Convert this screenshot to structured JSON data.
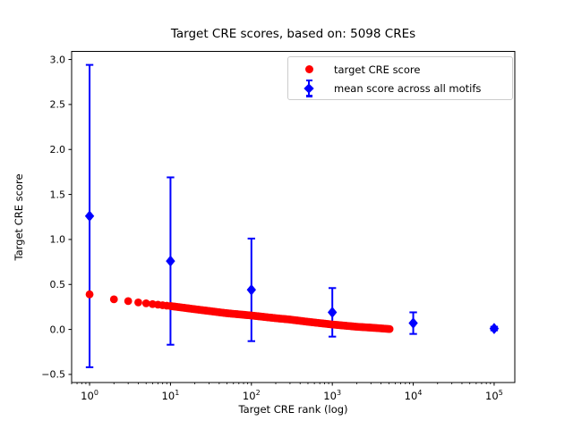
{
  "figure": {
    "title": "Target CRE scores, based on: 5098 CREs",
    "background": "#ffffff"
  },
  "axes": {
    "xlabel": "Target CRE rank (log)",
    "ylabel": "Target CRE score",
    "x_scale": "log10",
    "x_tick_base": "10",
    "x_tick_exponents": [
      0,
      1,
      2,
      3,
      4,
      5
    ],
    "y_tick_labels": [
      "3.0",
      "2.5",
      "2.0",
      "1.5",
      "1.0",
      "0.5",
      "0.0",
      "−0.5"
    ],
    "y_tick_values": [
      3.0,
      2.5,
      2.0,
      1.5,
      1.0,
      0.5,
      0.0,
      -0.5
    ],
    "xlim": [
      0.6,
      180000
    ],
    "ylim": [
      -0.59,
      3.09
    ],
    "grid": false
  },
  "legend": {
    "position": "upper right",
    "entries": [
      {
        "label": "target CRE score",
        "marker": "circle",
        "color": "#ff0000"
      },
      {
        "label": "mean score across all motifs",
        "marker": "diamond-with-errorbar",
        "color": "#0000ff"
      }
    ]
  },
  "chart_data": {
    "type": "scatter",
    "title": "Target CRE scores, based on: 5098 CREs",
    "xlabel": "Target CRE rank (log)",
    "ylabel": "Target CRE score",
    "x_scale": "log",
    "xlim": [
      0.6,
      180000
    ],
    "ylim": [
      -0.59,
      3.09
    ],
    "grid": false,
    "legend_position": "upper right",
    "series": [
      {
        "name": "target CRE score",
        "color": "#ff0000",
        "marker": "circle",
        "n_points": 5098,
        "rank_range": [
          1,
          5098
        ],
        "anchor_points": [
          [
            1,
            0.39
          ],
          [
            2,
            0.335
          ],
          [
            3,
            0.315
          ],
          [
            4,
            0.3
          ],
          [
            5,
            0.29
          ],
          [
            7,
            0.275
          ],
          [
            10,
            0.26
          ],
          [
            20,
            0.225
          ],
          [
            30,
            0.205
          ],
          [
            50,
            0.18
          ],
          [
            100,
            0.155
          ],
          [
            200,
            0.125
          ],
          [
            300,
            0.11
          ],
          [
            500,
            0.085
          ],
          [
            1000,
            0.055
          ],
          [
            2000,
            0.03
          ],
          [
            3000,
            0.02
          ],
          [
            5098,
            0.005
          ]
        ]
      },
      {
        "name": "mean score across all motifs",
        "color": "#0000ff",
        "marker": "diamond",
        "points": [
          {
            "rank": 1,
            "mean": 1.26,
            "err": 1.68
          },
          {
            "rank": 10,
            "mean": 0.76,
            "err": 0.93
          },
          {
            "rank": 100,
            "mean": 0.44,
            "err": 0.57
          },
          {
            "rank": 1000,
            "mean": 0.19,
            "err": 0.27
          },
          {
            "rank": 10000,
            "mean": 0.07,
            "err": 0.12
          },
          {
            "rank": 100000,
            "mean": 0.01,
            "err": 0.02
          }
        ]
      }
    ]
  }
}
